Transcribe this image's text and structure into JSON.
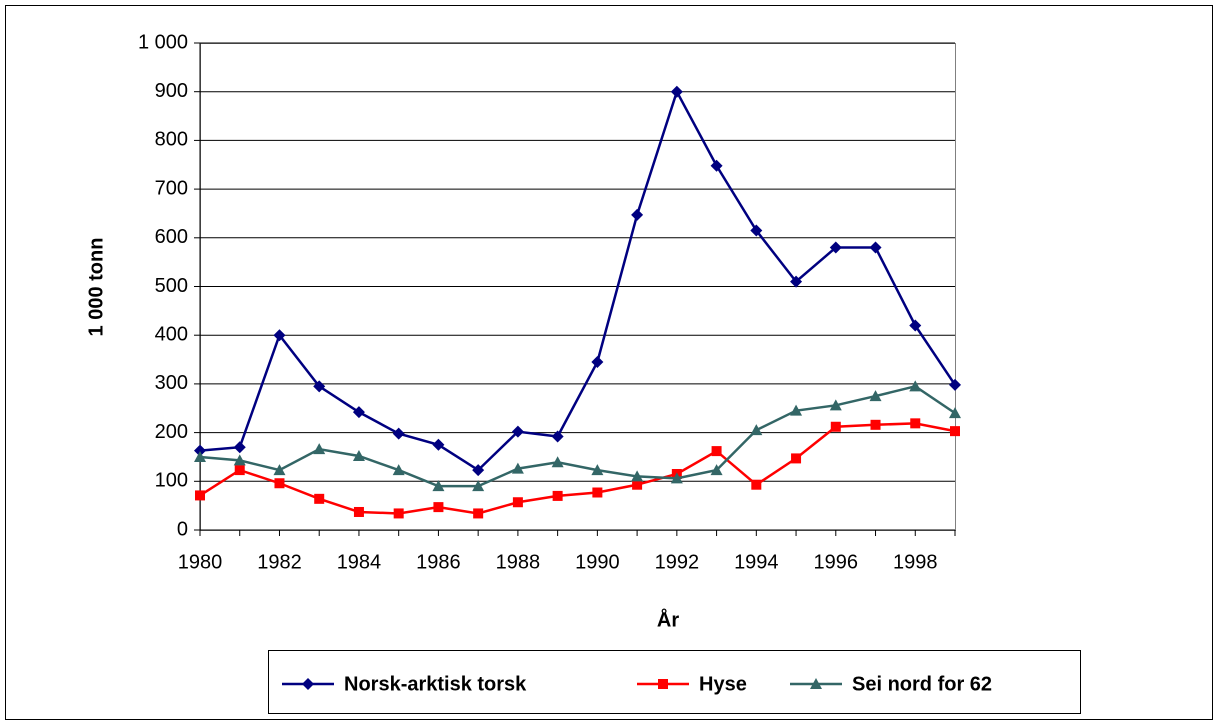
{
  "chart_data": {
    "type": "line",
    "y_label": "1 000 tonn",
    "x_label": "År",
    "x": [
      1980,
      1981,
      1982,
      1983,
      1984,
      1985,
      1986,
      1987,
      1988,
      1989,
      1990,
      1991,
      1992,
      1993,
      1994,
      1995,
      1996,
      1997,
      1998,
      1999
    ],
    "series": [
      {
        "name": "Norsk-arktisk torsk",
        "color": "#000080",
        "marker": "diamond",
        "values": [
          163,
          170,
          400,
          295,
          242,
          198,
          175,
          123,
          202,
          192,
          345,
          647,
          900,
          748,
          615,
          510,
          580,
          580,
          420,
          298
        ]
      },
      {
        "name": "Hyse",
        "color": "#ff0000",
        "marker": "square",
        "values": [
          71,
          123,
          96,
          64,
          37,
          34,
          47,
          34,
          57,
          70,
          77,
          93,
          115,
          162,
          93,
          147,
          212,
          216,
          219,
          203
        ]
      },
      {
        "name": "Sei nord for 62",
        "color": "#336666",
        "marker": "triangle",
        "values": [
          150,
          143,
          123,
          166,
          152,
          123,
          90,
          90,
          126,
          139,
          123,
          110,
          106,
          123,
          205,
          245,
          256,
          275,
          295,
          240
        ]
      }
    ],
    "xlim": [
      1980,
      1999
    ],
    "xticks": [
      1980,
      1982,
      1984,
      1986,
      1988,
      1990,
      1992,
      1994,
      1996,
      1998
    ],
    "ylim": [
      0,
      1000
    ],
    "yticks": [
      0,
      100,
      200,
      300,
      400,
      500,
      600,
      700,
      800,
      900,
      {
        "value": 1000,
        "label": "1 000"
      }
    ],
    "grid": true
  }
}
